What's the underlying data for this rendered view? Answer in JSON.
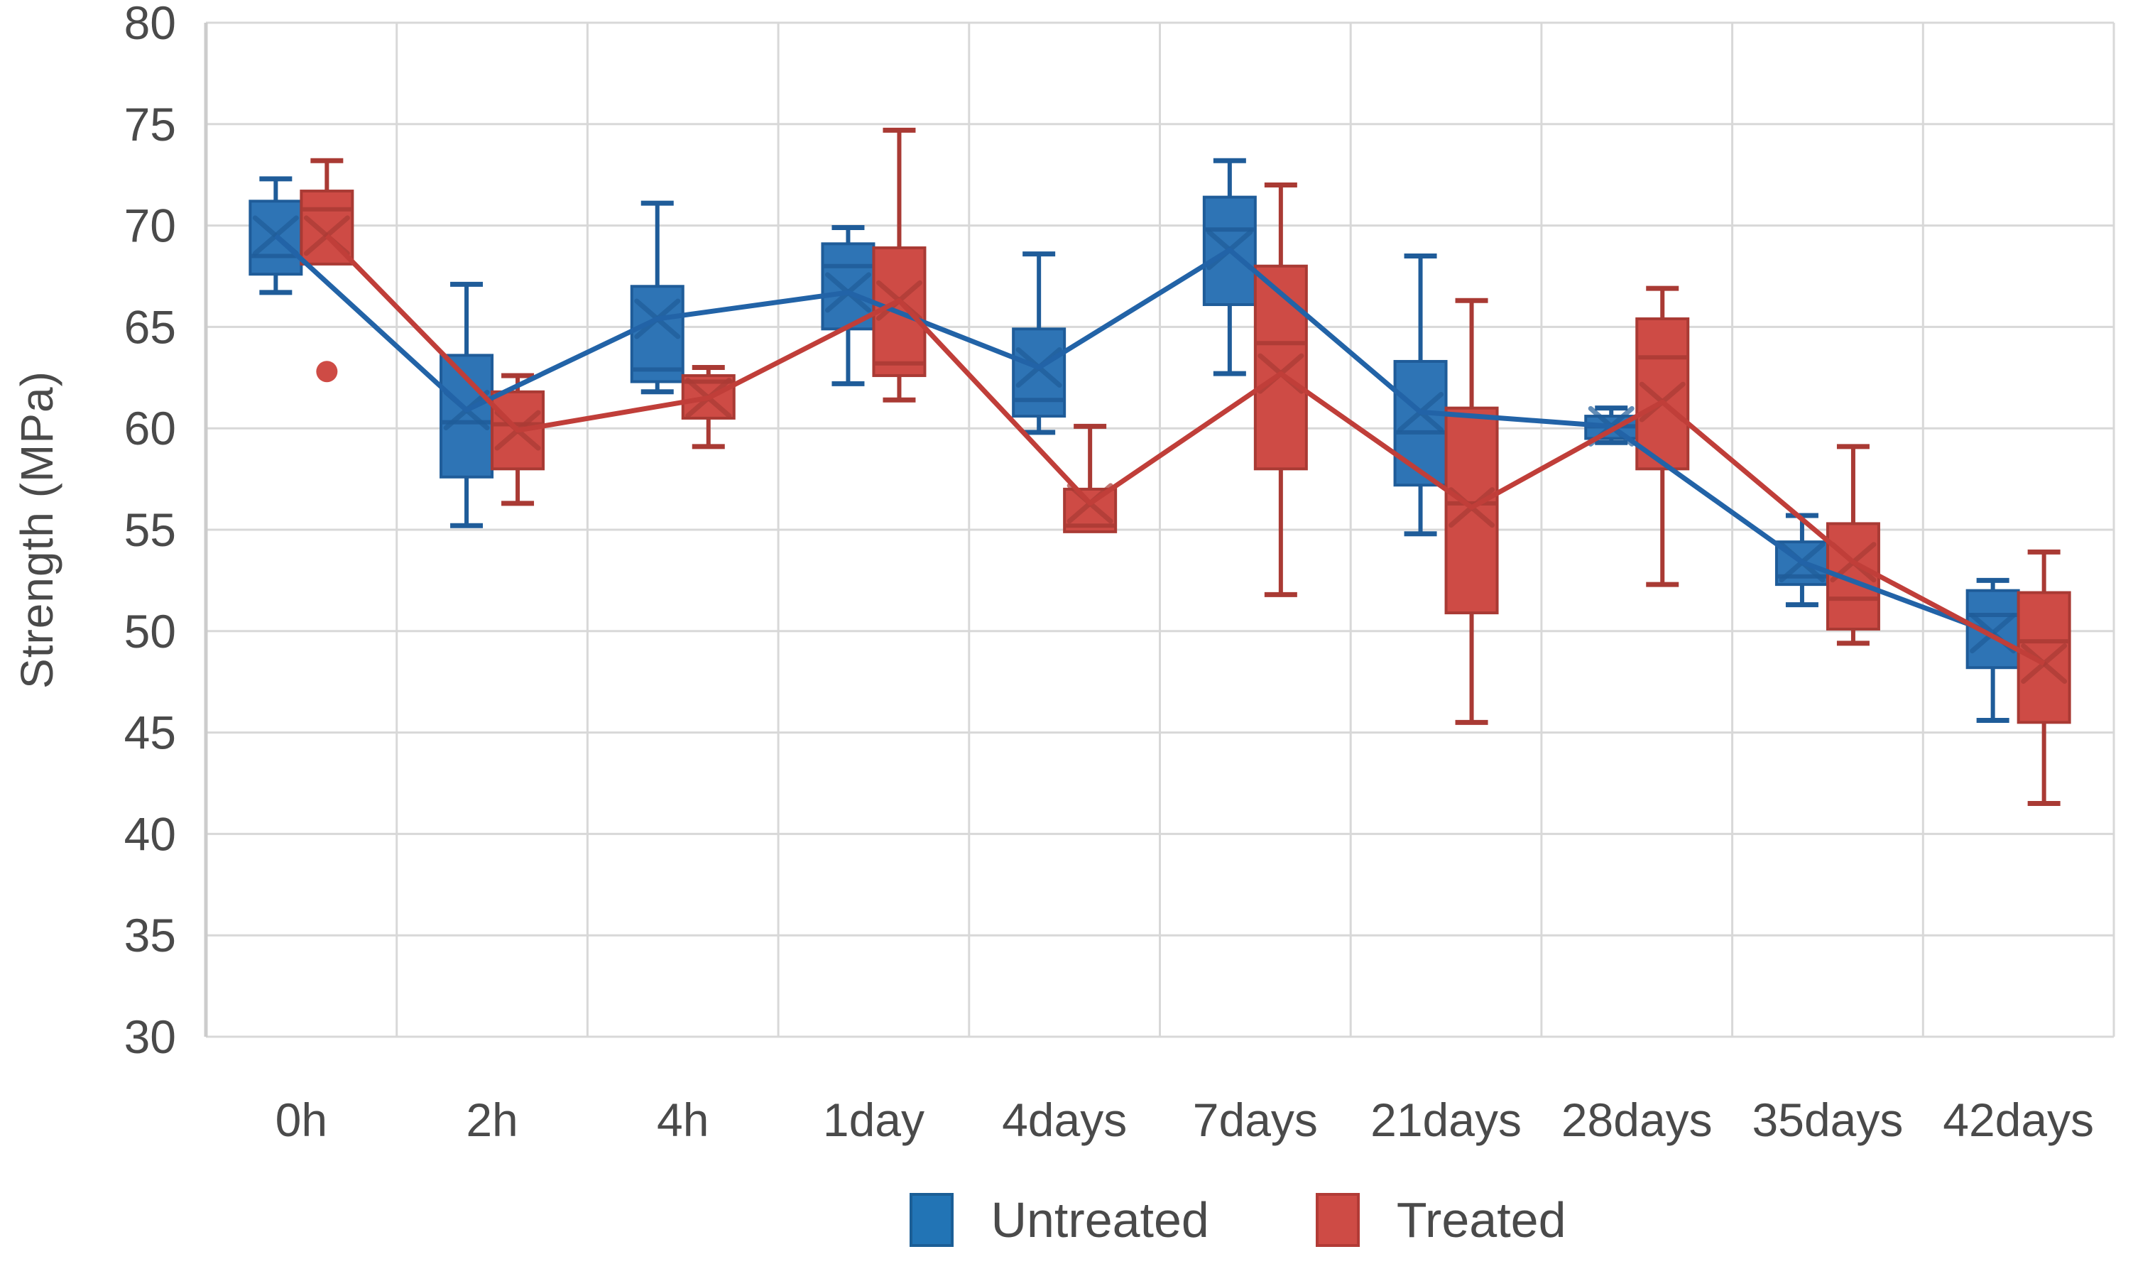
{
  "chart_data": {
    "type": "box",
    "title": "",
    "xlabel": "",
    "ylabel": "Strength (MPa)",
    "grid": true,
    "categories": [
      "0h",
      "2h",
      "4h",
      "1day",
      "4days",
      "7days",
      "21days",
      "28days",
      "35days",
      "42days"
    ],
    "y_axis": {
      "min": 30,
      "max": 80,
      "step": 5,
      "ticks": [
        80,
        75,
        70,
        65,
        60,
        55,
        50,
        45,
        40,
        35,
        30
      ]
    },
    "legend": {
      "position": "bottom",
      "entries": [
        {
          "label": "Untreated",
          "color": "#2274B5",
          "border": "#1B5E96"
        },
        {
          "label": "Treated",
          "color": "#CE4B45",
          "border": "#B23B36"
        }
      ]
    },
    "colors": {
      "grid": "#D8D8D8",
      "axis_line": "#CCCCCC",
      "text": "#4a4a4a",
      "untreated_fill": "#2E74B5",
      "untreated_edge": "#1F5C99",
      "untreated_line": "#2263A7",
      "treated_fill": "#CE4B45",
      "treated_edge": "#A93A34",
      "treated_line": "#C03E39"
    },
    "series": [
      {
        "name": "Untreated",
        "fill": "#2E74B5",
        "edge": "#1F5C99",
        "line": "#2263A7",
        "boxes": [
          {
            "lo": 66.7,
            "q1": 67.6,
            "med": 68.5,
            "mean": 69.5,
            "q3": 71.2,
            "hi": 72.3,
            "outliers": []
          },
          {
            "lo": 55.2,
            "q1": 57.6,
            "med": 60.3,
            "mean": 60.9,
            "q3": 63.6,
            "hi": 67.1,
            "outliers": []
          },
          {
            "lo": 61.8,
            "q1": 62.3,
            "med": 62.9,
            "mean": 65.4,
            "q3": 67.0,
            "hi": 71.1,
            "outliers": []
          },
          {
            "lo": 62.2,
            "q1": 64.9,
            "med": 68.0,
            "mean": 66.7,
            "q3": 69.1,
            "hi": 69.9,
            "outliers": []
          },
          {
            "lo": 59.8,
            "q1": 60.6,
            "med": 61.4,
            "mean": 63.0,
            "q3": 64.9,
            "hi": 68.6,
            "outliers": []
          },
          {
            "lo": 62.7,
            "q1": 66.1,
            "med": 69.8,
            "mean": 68.8,
            "q3": 71.4,
            "hi": 73.2,
            "outliers": []
          },
          {
            "lo": 54.8,
            "q1": 57.2,
            "med": 59.8,
            "mean": 60.8,
            "q3": 63.3,
            "hi": 68.5,
            "outliers": []
          },
          {
            "lo": 59.3,
            "q1": 59.5,
            "med": 60.1,
            "mean": 60.1,
            "q3": 60.6,
            "hi": 61.0,
            "outliers": []
          },
          {
            "lo": 51.3,
            "q1": 52.3,
            "med": 52.7,
            "mean": 53.4,
            "q3": 54.4,
            "hi": 55.7,
            "outliers": []
          },
          {
            "lo": 45.6,
            "q1": 48.2,
            "med": 50.8,
            "mean": 49.9,
            "q3": 52.0,
            "hi": 52.5,
            "outliers": []
          }
        ]
      },
      {
        "name": "Treated",
        "fill": "#CE4B45",
        "edge": "#A93A34",
        "line": "#C03E39",
        "boxes": [
          {
            "lo": 68.1,
            "q1": 68.1,
            "med": 70.8,
            "mean": 69.5,
            "q3": 71.7,
            "hi": 73.2,
            "outliers": [
              62.8
            ]
          },
          {
            "lo": 56.3,
            "q1": 58.0,
            "med": 60.2,
            "mean": 59.9,
            "q3": 61.8,
            "hi": 62.6,
            "outliers": []
          },
          {
            "lo": 59.1,
            "q1": 60.5,
            "med": 62.3,
            "mean": 61.5,
            "q3": 62.6,
            "hi": 63.0,
            "outliers": []
          },
          {
            "lo": 61.4,
            "q1": 62.6,
            "med": 63.2,
            "mean": 66.3,
            "q3": 68.9,
            "hi": 74.7,
            "outliers": []
          },
          {
            "lo": 54.9,
            "q1": 54.9,
            "med": 55.2,
            "mean": 56.3,
            "q3": 57.0,
            "hi": 60.1,
            "outliers": []
          },
          {
            "lo": 51.8,
            "q1": 58.0,
            "med": 64.2,
            "mean": 62.7,
            "q3": 68.0,
            "hi": 72.0,
            "outliers": []
          },
          {
            "lo": 45.5,
            "q1": 50.9,
            "med": 56.3,
            "mean": 56.1,
            "q3": 61.0,
            "hi": 66.3,
            "outliers": []
          },
          {
            "lo": 52.3,
            "q1": 58.0,
            "med": 63.5,
            "mean": 61.3,
            "q3": 65.4,
            "hi": 66.9,
            "outliers": []
          },
          {
            "lo": 49.4,
            "q1": 50.1,
            "med": 51.6,
            "mean": 53.4,
            "q3": 55.3,
            "hi": 59.1,
            "outliers": []
          },
          {
            "lo": 41.5,
            "q1": 45.5,
            "med": 49.5,
            "mean": 48.4,
            "q3": 51.9,
            "hi": 53.9,
            "outliers": []
          }
        ]
      }
    ]
  }
}
